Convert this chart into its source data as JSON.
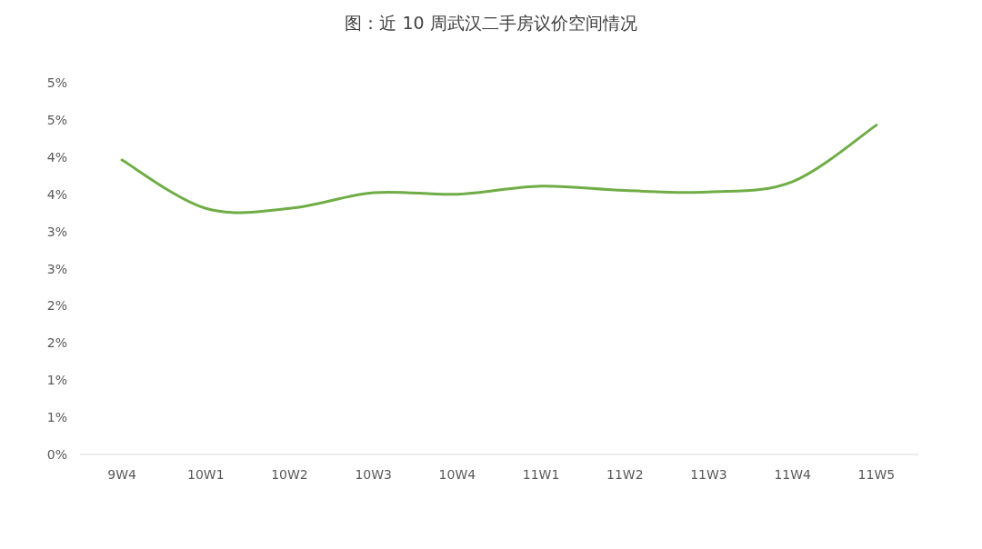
{
  "chart_data": {
    "type": "line",
    "title": "图：近 10 周武汉二手房议价空间情况",
    "categories": [
      "9W4",
      "10W1",
      "10W2",
      "10W3",
      "10W4",
      "11W1",
      "11W2",
      "11W3",
      "11W4",
      "11W5"
    ],
    "series": [
      {
        "color": "#70ad47",
        "values": [
          3.96,
          3.31,
          3.31,
          3.52,
          3.5,
          3.61,
          3.55,
          3.53,
          3.67,
          4.43
        ]
      }
    ],
    "ylim": [
      0,
      5
    ],
    "yticks": [
      {
        "value": 0,
        "label": "0%"
      },
      {
        "value": 0.5,
        "label": "1%"
      },
      {
        "value": 1,
        "label": "1%"
      },
      {
        "value": 1.5,
        "label": "2%"
      },
      {
        "value": 2,
        "label": "2%"
      },
      {
        "value": 2.5,
        "label": "3%"
      },
      {
        "value": 3,
        "label": "3%"
      },
      {
        "value": 3.5,
        "label": "4%"
      },
      {
        "value": 4,
        "label": "4%"
      },
      {
        "value": 4.5,
        "label": "5%"
      },
      {
        "value": 5,
        "label": "5%"
      }
    ],
    "grid": false,
    "marker": "none",
    "line_style": "solid"
  }
}
